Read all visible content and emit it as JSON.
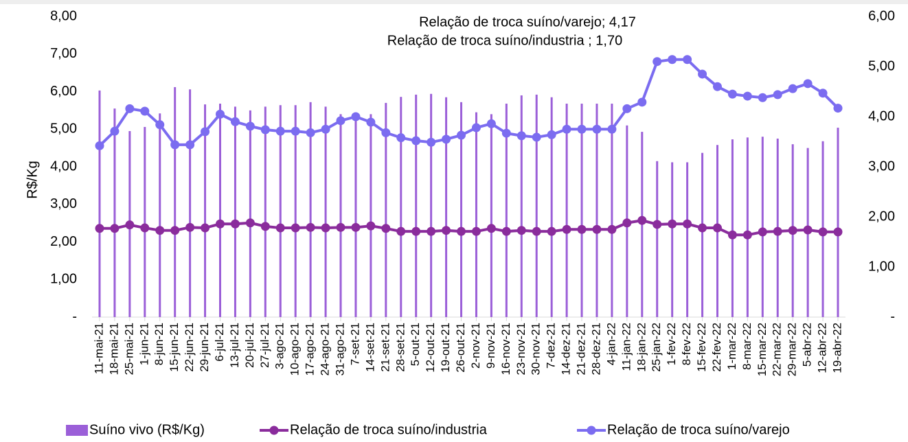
{
  "chart_data": {
    "type": "bar",
    "y_label": "R$/Kg",
    "annotations": [
      "Relação de troca suíno/varejo; 4,17",
      "Relação de troca suíno/industria ; 1,70"
    ],
    "categories": [
      "11-mai-21",
      "18-mai-21",
      "25-mai-21",
      "1-jun-21",
      "8-jun-21",
      "15-jun-21",
      "22-jun-21",
      "29-jun-21",
      "6-jul-21",
      "13-jul-21",
      "20-jul-21",
      "27-jul-21",
      "3-ago-21",
      "10-ago-21",
      "17-ago-21",
      "24-ago-21",
      "31-ago-21",
      "7-set-21",
      "14-set-21",
      "21-set-21",
      "28-set-21",
      "5-out-21",
      "12-out-21",
      "19-out-21",
      "26-out-21",
      "2-nov-21",
      "9-nov-21",
      "16-nov-21",
      "23-nov-21",
      "30-nov-21",
      "7-dez-21",
      "14-dez-21",
      "21-dez-21",
      "28-dez-21",
      "4-jan-22",
      "11-jan-22",
      "18-jan-22",
      "25-jan-22",
      "1-fev-22",
      "8-fev-22",
      "15-fev-22",
      "22-fev-22",
      "1-mar-22",
      "8-mar-22",
      "15-mar-22",
      "22-mar-22",
      "29-mar-22",
      "5-abr-22",
      "12-abr-22",
      "19-abr-22"
    ],
    "series": [
      {
        "name": "Suíno vivo (R$/Kg)",
        "type": "bar",
        "axis": "y",
        "color": "#9b5fd8",
        "values": [
          6.03,
          5.55,
          4.95,
          5.06,
          5.42,
          6.12,
          6.06,
          5.66,
          5.68,
          5.6,
          5.5,
          5.6,
          5.64,
          5.64,
          5.72,
          5.6,
          5.4,
          5.25,
          5.4,
          5.7,
          5.86,
          5.92,
          5.94,
          5.85,
          5.72,
          5.45,
          5.4,
          5.68,
          5.9,
          5.92,
          5.85,
          5.68,
          5.68,
          5.68,
          5.68,
          5.1,
          4.93,
          4.15,
          4.12,
          4.12,
          4.37,
          4.58,
          4.73,
          4.78,
          4.8,
          4.75,
          4.6,
          4.5,
          4.68,
          5.04
        ]
      },
      {
        "name": "Relação de troca suíno/industria",
        "type": "line",
        "axis": "y2",
        "color": "#8a2c9c",
        "values": [
          1.77,
          1.77,
          1.84,
          1.78,
          1.73,
          1.73,
          1.79,
          1.78,
          1.86,
          1.86,
          1.88,
          1.81,
          1.78,
          1.78,
          1.79,
          1.78,
          1.79,
          1.79,
          1.82,
          1.77,
          1.71,
          1.71,
          1.71,
          1.73,
          1.71,
          1.71,
          1.77,
          1.71,
          1.73,
          1.71,
          1.71,
          1.75,
          1.75,
          1.75,
          1.75,
          1.88,
          1.93,
          1.85,
          1.86,
          1.86,
          1.78,
          1.78,
          1.64,
          1.64,
          1.7,
          1.71,
          1.73,
          1.74,
          1.7,
          1.7
        ]
      },
      {
        "name": "Relação de troca suíno/varejo",
        "type": "line",
        "axis": "y2",
        "color": "#7b6cf0",
        "values": [
          3.42,
          3.71,
          4.16,
          4.11,
          3.84,
          3.44,
          3.44,
          3.7,
          4.05,
          3.9,
          3.81,
          3.74,
          3.71,
          3.71,
          3.68,
          3.75,
          3.92,
          4.0,
          3.89,
          3.68,
          3.58,
          3.52,
          3.49,
          3.55,
          3.63,
          3.78,
          3.86,
          3.67,
          3.62,
          3.59,
          3.64,
          3.75,
          3.75,
          3.75,
          3.75,
          4.16,
          4.29,
          5.1,
          5.14,
          5.14,
          4.85,
          4.6,
          4.45,
          4.41,
          4.38,
          4.44,
          4.56,
          4.66,
          4.47,
          4.17
        ]
      }
    ],
    "ylim": [
      0,
      8
    ],
    "yticks": [
      {
        "value": 0,
        "label": "-"
      },
      {
        "value": 1,
        "label": "1,00"
      },
      {
        "value": 2,
        "label": "2,00"
      },
      {
        "value": 3,
        "label": "3,00"
      },
      {
        "value": 4,
        "label": "4,00"
      },
      {
        "value": 5,
        "label": "5,00"
      },
      {
        "value": 6,
        "label": "6,00"
      },
      {
        "value": 7,
        "label": "7,00"
      },
      {
        "value": 8,
        "label": "8,00"
      }
    ],
    "y2lim": [
      0,
      6
    ],
    "y2ticks": [
      {
        "value": 0,
        "label": "-"
      },
      {
        "value": 1,
        "label": "1,00"
      },
      {
        "value": 2,
        "label": "2,00"
      },
      {
        "value": 3,
        "label": "3,00"
      },
      {
        "value": 4,
        "label": "4,00"
      },
      {
        "value": 5,
        "label": "5,00"
      },
      {
        "value": 6,
        "label": "6,00"
      }
    ],
    "legend": "bottom"
  }
}
